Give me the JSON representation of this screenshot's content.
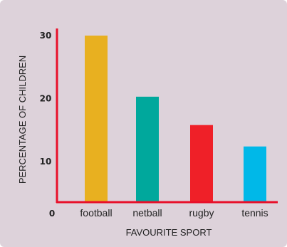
{
  "chart_data": {
    "type": "bar",
    "title": "",
    "xlabel": "FAVOURITE SPORT",
    "ylabel": "PERCENTAGE OF CHILDREN",
    "origin_label": "0",
    "categories": [
      "football",
      "netball",
      "rugby",
      "tennis"
    ],
    "values": [
      30,
      20.3,
      15.8,
      12.4
    ],
    "bar_colors": [
      "#e8b020",
      "#00a89c",
      "#ef2028",
      "#00b8e8"
    ],
    "y_ticks": [
      10,
      20,
      30
    ],
    "ylim": [
      5,
      32
    ],
    "grid": false,
    "axis_color": "#e8102a",
    "background_color": "#ddd2da"
  }
}
